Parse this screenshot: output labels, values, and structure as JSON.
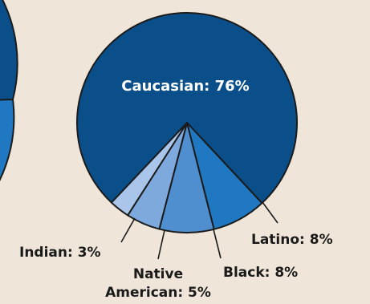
{
  "chart_data": [
    {
      "type": "pie",
      "partial": true,
      "slices": [
        {
          "label": "",
          "color": "#0b4f8a"
        },
        {
          "label": "",
          "color": "#1f78c1"
        }
      ]
    },
    {
      "type": "pie",
      "slices": [
        {
          "label": "Caucasian: 76%",
          "name": "Caucasian",
          "value": 76,
          "color": "#0b4f8a"
        },
        {
          "label": "Latino: 8%",
          "name": "Latino",
          "value": 8,
          "color": "#1f78c1"
        },
        {
          "label": "Black: 8%",
          "name": "Black",
          "value": 8,
          "color": "#4f8fd0"
        },
        {
          "label": "Native American: 5%",
          "name": "Native American",
          "value": 5,
          "color": "#7ea9dc"
        },
        {
          "label": "Indian: 3%",
          "name": "Indian",
          "value": 3,
          "color": "#a9c5ea"
        }
      ],
      "label_lines": {
        "native_american": [
          "Native",
          "American: 5%"
        ]
      }
    }
  ]
}
